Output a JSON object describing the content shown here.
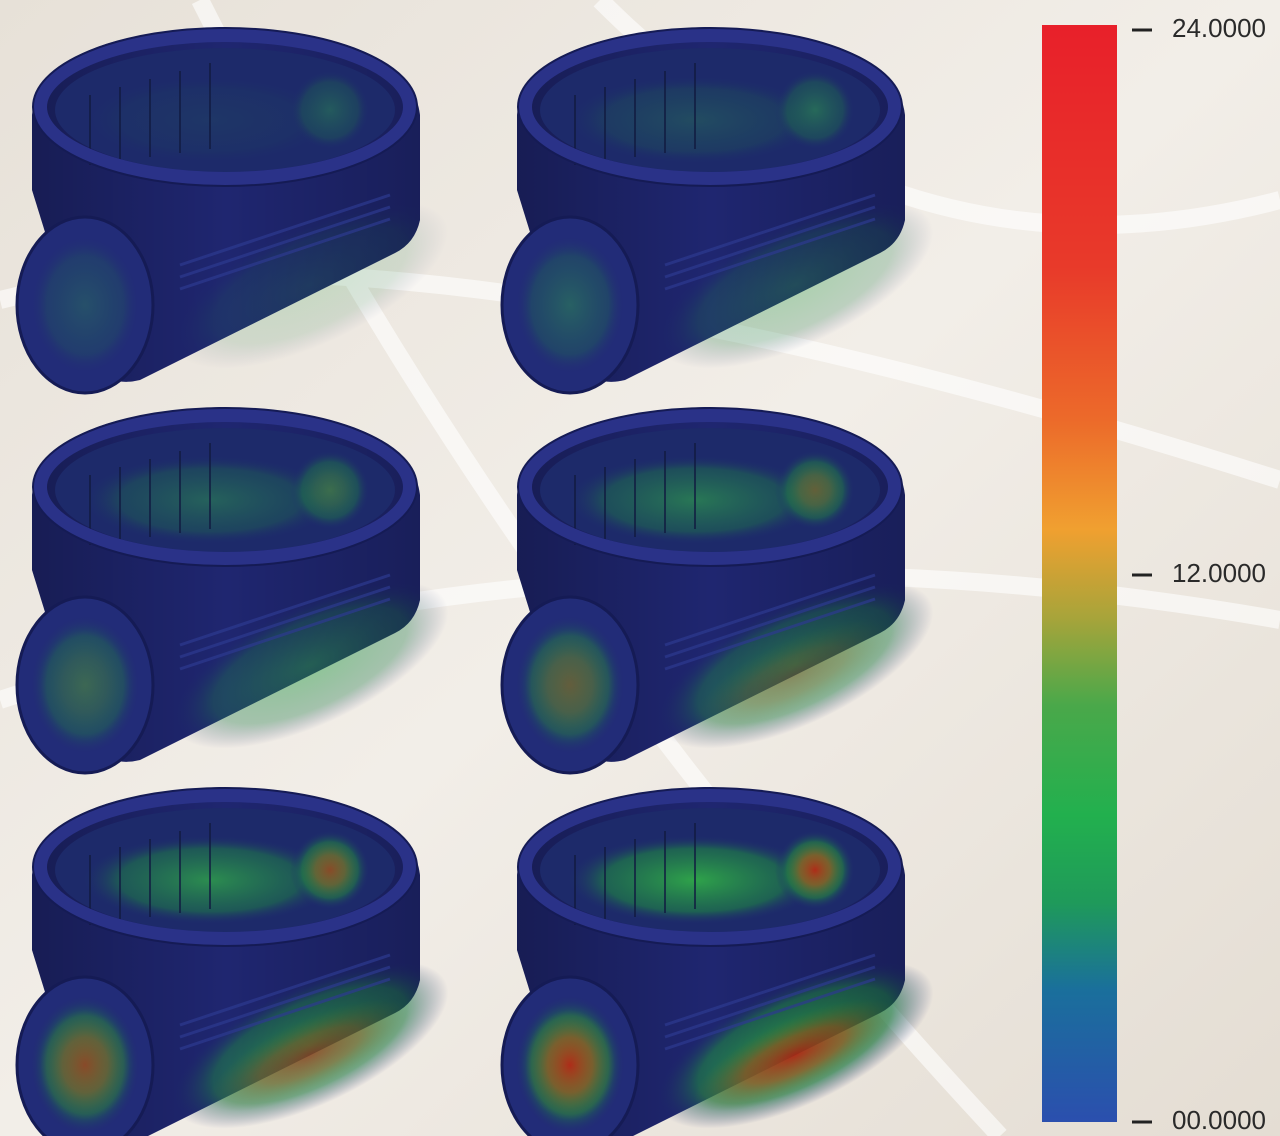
{
  "colorbar": {
    "ticks": [
      "24.0000",
      "12.0000",
      "00.0000"
    ]
  }
}
